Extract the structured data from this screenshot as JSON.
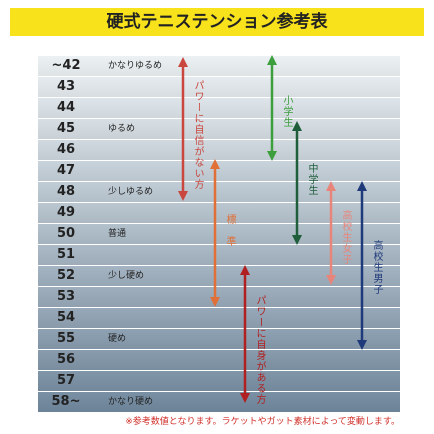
{
  "header": {
    "title": "硬式テニステンション参考表"
  },
  "table": {
    "rows": [
      {
        "tension": "~42",
        "feel": "かなりゆるめ"
      },
      {
        "tension": "43"
      },
      {
        "tension": "44"
      },
      {
        "tension": "45",
        "feel": "ゆるめ"
      },
      {
        "tension": "46"
      },
      {
        "tension": "47"
      },
      {
        "tension": "48",
        "feel": "少しゆるめ"
      },
      {
        "tension": "49"
      },
      {
        "tension": "50",
        "feel": "普通"
      },
      {
        "tension": "51"
      },
      {
        "tension": "52",
        "feel": "少し硬め"
      },
      {
        "tension": "53"
      },
      {
        "tension": "54"
      },
      {
        "tension": "55",
        "feel": "硬め"
      },
      {
        "tension": "56"
      },
      {
        "tension": "57"
      },
      {
        "tension": "58~",
        "feel": "かなり硬め"
      }
    ]
  },
  "arrows": [
    {
      "label": "パワーに自信がない方"
    },
    {
      "label": "小学生"
    },
    {
      "label": "中学生"
    },
    {
      "label": "標"
    },
    {
      "label": "準"
    },
    {
      "label": "高校生女子"
    },
    {
      "label": "高校生男子"
    },
    {
      "label": "パワーに自身がある方"
    }
  ],
  "footnote": "※参考数値となります。ラケットやガット素材によって変動します。"
}
